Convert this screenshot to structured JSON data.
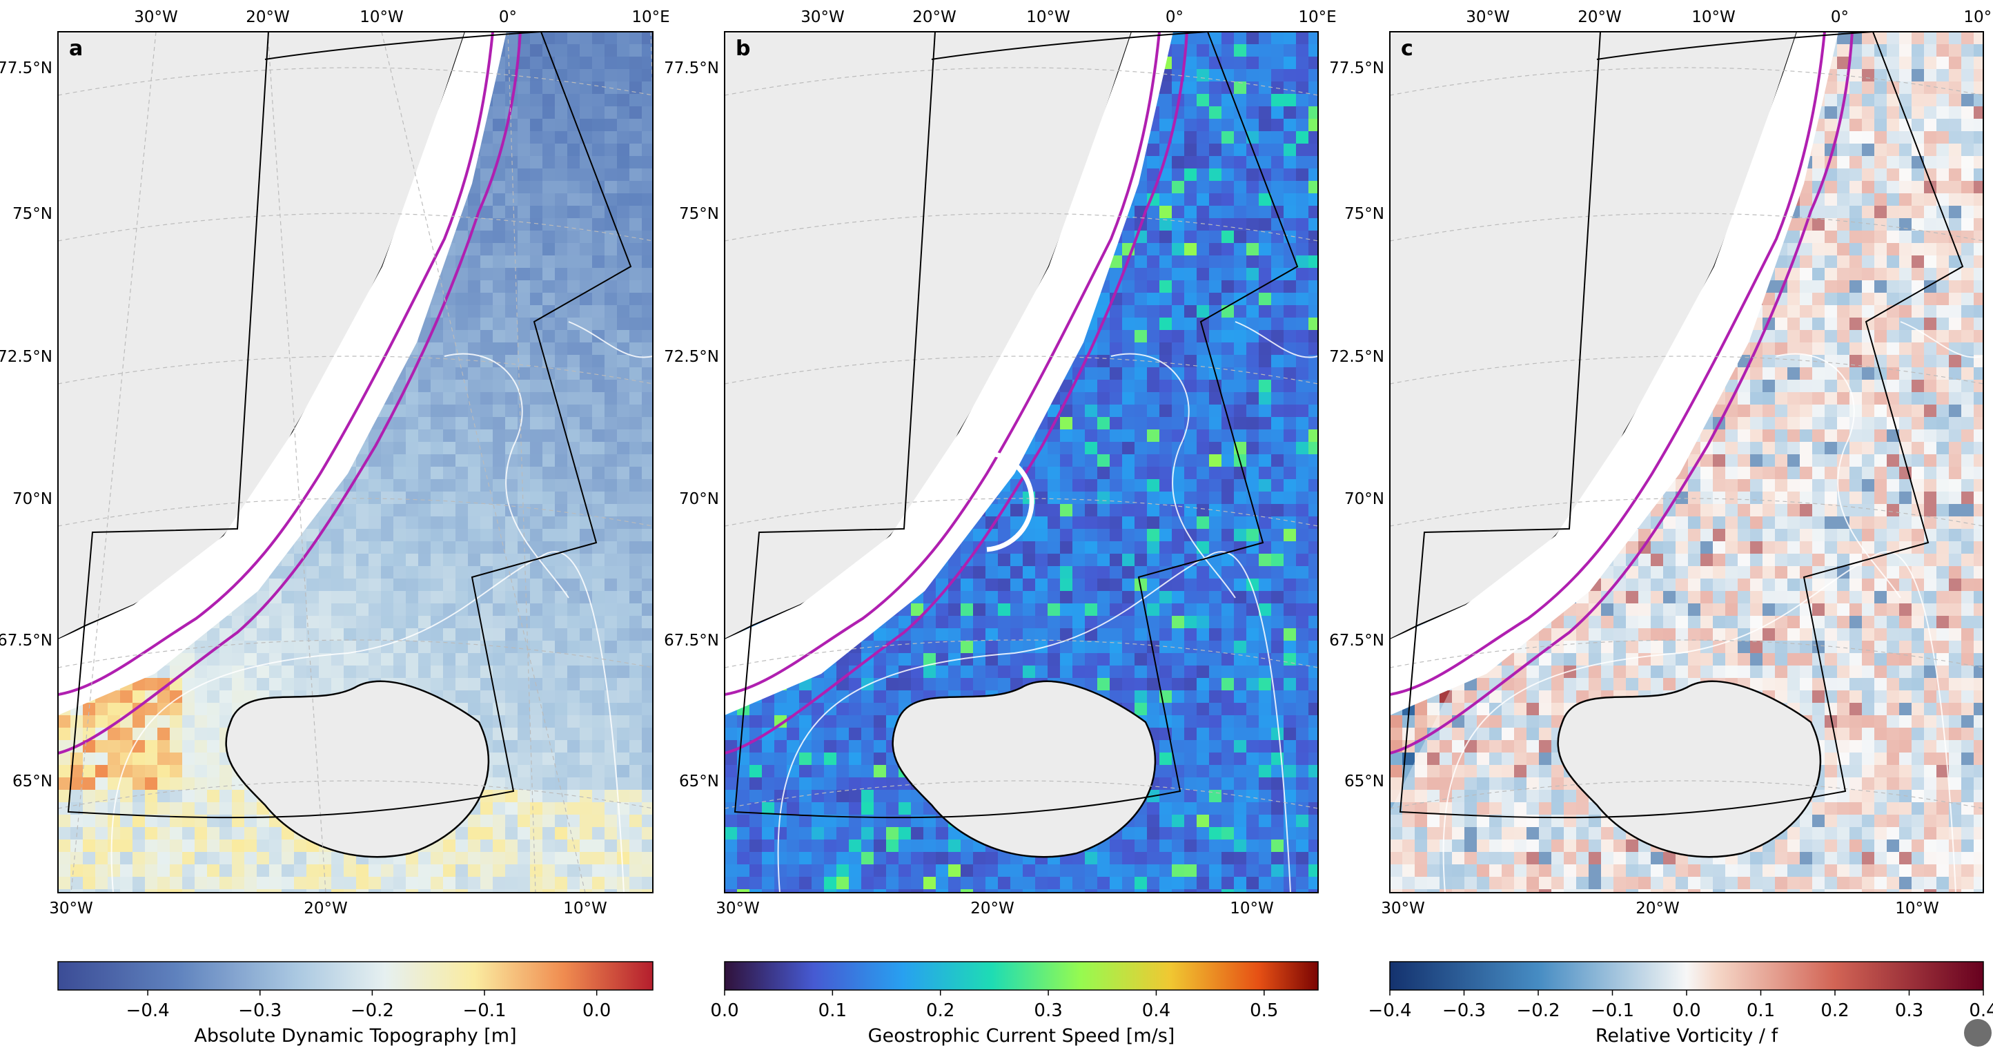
{
  "figure": {
    "panels": [
      {
        "label": "a",
        "colorbar_label": "Absolute Dynamic Topography [m]",
        "cmap": "ADT"
      },
      {
        "label": "b",
        "colorbar_label": "Geostrophic Current Speed [m/s]",
        "cmap": "speed"
      },
      {
        "label": "c",
        "colorbar_label": "Relative Vorticity / f",
        "cmap": "vort"
      }
    ]
  },
  "chart_data": [
    {
      "type": "heatmap",
      "panel": "a",
      "title": "",
      "colorbar": {
        "label": "Absolute Dynamic Topography [m]",
        "range": [
          -0.48,
          0.05
        ],
        "ticks": [
          -0.4,
          -0.3,
          -0.2,
          -0.1,
          0.0
        ],
        "tick_labels": [
          "−0.4",
          "−0.3",
          "−0.2",
          "−0.1",
          "0.0"
        ]
      },
      "top_lon_ticks": [
        "30°W",
        "20°W",
        "10°W",
        "0°",
        "10°E"
      ],
      "bottom_lon_ticks": [
        "30°W",
        "20°W",
        "10°W"
      ],
      "lat_ticks": [
        "77.5°N",
        "75°N",
        "72.5°N",
        "70°N",
        "67.5°N",
        "65°N"
      ],
      "lat_range": [
        63,
        78
      ],
      "lon_range": [
        -31,
        10
      ],
      "grid": true
    },
    {
      "type": "heatmap",
      "panel": "b",
      "title": "",
      "colorbar": {
        "label": "Geostrophic Current Speed [m/s]",
        "range": [
          0.0,
          0.55
        ],
        "ticks": [
          0.0,
          0.1,
          0.2,
          0.3,
          0.4,
          0.5
        ],
        "tick_labels": [
          "0.0",
          "0.1",
          "0.2",
          "0.3",
          "0.4",
          "0.5"
        ]
      },
      "top_lon_ticks": [
        "30°W",
        "20°W",
        "10°W",
        "0°",
        "10°E"
      ],
      "bottom_lon_ticks": [
        "30°W",
        "20°W",
        "10°W"
      ],
      "lat_ticks": [
        "77.5°N",
        "75°N",
        "72.5°N",
        "70°N",
        "67.5°N",
        "65°N"
      ],
      "lat_range": [
        63,
        78
      ],
      "lon_range": [
        -31,
        10
      ],
      "grid": true
    },
    {
      "type": "heatmap",
      "panel": "c",
      "title": "",
      "colorbar": {
        "label": "Relative Vorticity / f",
        "range": [
          -0.4,
          0.4
        ],
        "ticks": [
          -0.4,
          -0.3,
          -0.2,
          -0.1,
          0.0,
          0.1,
          0.2,
          0.3,
          0.4
        ],
        "tick_labels": [
          "−0.4",
          "−0.3",
          "−0.2",
          "−0.1",
          "0.0",
          "0.1",
          "0.2",
          "0.3",
          "0.4"
        ]
      },
      "top_lon_ticks": [
        "30°W",
        "20°W",
        "10°W",
        "0°",
        "10°E"
      ],
      "bottom_lon_ticks": [
        "30°W",
        "20°W",
        "10°W"
      ],
      "lat_ticks": [
        "77.5°N",
        "75°N",
        "72.5°N",
        "70°N",
        "67.5°N",
        "65°N"
      ],
      "lat_range": [
        63,
        78
      ],
      "lon_range": [
        -31,
        10
      ],
      "grid": true
    }
  ],
  "colors": {
    "land": "#ececec",
    "shelf_break_contour": "#b01fb0",
    "bathymetry_contour": "#ffffff",
    "domain_outline": "#000000",
    "highlight_circle": "#ffffff"
  }
}
